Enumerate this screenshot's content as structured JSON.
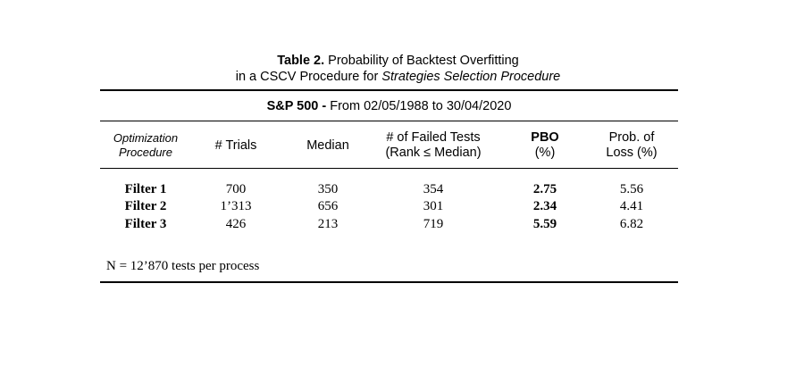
{
  "title": {
    "label": "Table 2.",
    "text_line1": " Probability of Backtest Overfitting",
    "text_line2_prefix": "in a CSCV Procedure for ",
    "text_line2_italic": "Strategies Selection Procedure"
  },
  "table": {
    "market_label": "S&P 500 -",
    "period": " From 02/05/1988 to 30/04/2020",
    "headers": {
      "col1": [
        "Optimization",
        "Procedure"
      ],
      "col2": "# Trials",
      "col3": "Median",
      "col4": [
        "# of Failed Tests",
        "(Rank ≤ Median)"
      ],
      "col5": [
        "PBO",
        "(%)"
      ],
      "col6": [
        "Prob. of",
        "Loss (%)"
      ]
    },
    "rows": [
      {
        "filter": "Filter 1",
        "trials": "700",
        "median": "350",
        "failed": "354",
        "pbo": "2.75",
        "loss": "5.56"
      },
      {
        "filter": "Filter 2",
        "trials": "1’313",
        "median": "656",
        "failed": "301",
        "pbo": "2.34",
        "loss": "4.41"
      },
      {
        "filter": "Filter 3",
        "trials": "426",
        "median": "213",
        "failed": "719",
        "pbo": "5.59",
        "loss": "6.82"
      }
    ],
    "footnote": "N = 12’870 tests per process"
  }
}
